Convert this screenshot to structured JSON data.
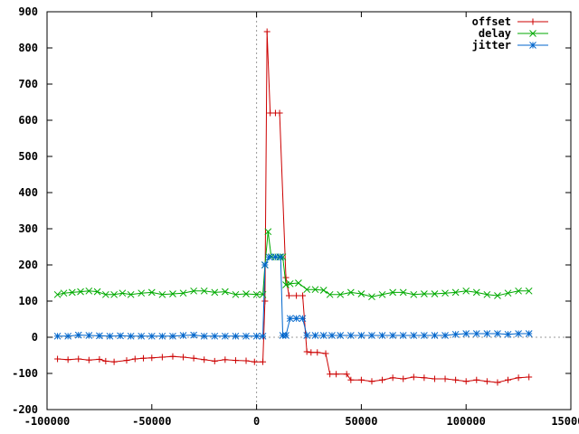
{
  "chart_data": {
    "type": "line",
    "title": "",
    "xlabel": "",
    "ylabel": "",
    "xlim": [
      -100000,
      150000
    ],
    "ylim": [
      -200,
      900
    ],
    "x_ticks": [
      -100000,
      -50000,
      0,
      50000,
      100000,
      150000
    ],
    "x_tick_labels": [
      "-100000",
      "-50000",
      "0",
      "50000",
      "100000",
      "150000"
    ],
    "y_ticks": [
      -200,
      -100,
      0,
      100,
      200,
      300,
      400,
      500,
      600,
      700,
      800,
      900
    ],
    "y_tick_labels": [
      "-200",
      "-100",
      "0",
      "100",
      "200",
      "300",
      "400",
      "500",
      "600",
      "700",
      "800",
      "900"
    ],
    "grid": false,
    "zero_axes": "dotted",
    "legend_position": "top-right",
    "series": [
      {
        "name": "offset",
        "color": "#cc0000",
        "marker": "plus",
        "points": [
          [
            -95000,
            -60
          ],
          [
            -90000,
            -62
          ],
          [
            -85000,
            -60
          ],
          [
            -80000,
            -63
          ],
          [
            -75000,
            -61
          ],
          [
            -72000,
            -66
          ],
          [
            -68000,
            -68
          ],
          [
            -62000,
            -64
          ],
          [
            -58000,
            -60
          ],
          [
            -54000,
            -58
          ],
          [
            -50000,
            -57
          ],
          [
            -45000,
            -55
          ],
          [
            -40000,
            -53
          ],
          [
            -35000,
            -55
          ],
          [
            -30000,
            -58
          ],
          [
            -25000,
            -62
          ],
          [
            -20000,
            -66
          ],
          [
            -15000,
            -62
          ],
          [
            -10000,
            -64
          ],
          [
            -5000,
            -65
          ],
          [
            -1000,
            -68
          ],
          [
            3000,
            -68
          ],
          [
            4000,
            100
          ],
          [
            5000,
            845
          ],
          [
            6500,
            620
          ],
          [
            9000,
            620
          ],
          [
            11000,
            620
          ],
          [
            14000,
            165
          ],
          [
            15500,
            115
          ],
          [
            19000,
            115
          ],
          [
            22000,
            115
          ],
          [
            24000,
            -40
          ],
          [
            26000,
            -42
          ],
          [
            29000,
            -42
          ],
          [
            33000,
            -45
          ],
          [
            35000,
            -102
          ],
          [
            38000,
            -102
          ],
          [
            43000,
            -102
          ],
          [
            45000,
            -118
          ],
          [
            50000,
            -118
          ],
          [
            55000,
            -122
          ],
          [
            60000,
            -118
          ],
          [
            65000,
            -112
          ],
          [
            70000,
            -115
          ],
          [
            75000,
            -110
          ],
          [
            80000,
            -112
          ],
          [
            85000,
            -115
          ],
          [
            90000,
            -115
          ],
          [
            95000,
            -118
          ],
          [
            100000,
            -122
          ],
          [
            105000,
            -118
          ],
          [
            110000,
            -122
          ],
          [
            115000,
            -125
          ],
          [
            120000,
            -118
          ],
          [
            125000,
            -112
          ],
          [
            130000,
            -110
          ]
        ]
      },
      {
        "name": "delay",
        "color": "#00aa00",
        "marker": "cross",
        "points": [
          [
            -95000,
            118
          ],
          [
            -92000,
            122
          ],
          [
            -88000,
            124
          ],
          [
            -84000,
            126
          ],
          [
            -80000,
            128
          ],
          [
            -76000,
            126
          ],
          [
            -72000,
            118
          ],
          [
            -68000,
            118
          ],
          [
            -64000,
            122
          ],
          [
            -60000,
            118
          ],
          [
            -55000,
            122
          ],
          [
            -50000,
            124
          ],
          [
            -45000,
            118
          ],
          [
            -40000,
            120
          ],
          [
            -35000,
            122
          ],
          [
            -30000,
            128
          ],
          [
            -25000,
            128
          ],
          [
            -20000,
            124
          ],
          [
            -15000,
            126
          ],
          [
            -10000,
            118
          ],
          [
            -5000,
            120
          ],
          [
            0,
            118
          ],
          [
            3000,
            118
          ],
          [
            4000,
            200
          ],
          [
            5500,
            292
          ],
          [
            7000,
            222
          ],
          [
            9000,
            222
          ],
          [
            11000,
            222
          ],
          [
            12500,
            222
          ],
          [
            14000,
            145
          ],
          [
            16000,
            148
          ],
          [
            20000,
            150
          ],
          [
            24000,
            132
          ],
          [
            28000,
            132
          ],
          [
            32000,
            130
          ],
          [
            35000,
            118
          ],
          [
            40000,
            118
          ],
          [
            45000,
            124
          ],
          [
            50000,
            120
          ],
          [
            55000,
            112
          ],
          [
            60000,
            118
          ],
          [
            65000,
            124
          ],
          [
            70000,
            124
          ],
          [
            75000,
            118
          ],
          [
            80000,
            120
          ],
          [
            85000,
            120
          ],
          [
            90000,
            122
          ],
          [
            95000,
            124
          ],
          [
            100000,
            128
          ],
          [
            105000,
            124
          ],
          [
            110000,
            118
          ],
          [
            115000,
            115
          ],
          [
            120000,
            122
          ],
          [
            125000,
            128
          ],
          [
            130000,
            128
          ]
        ]
      },
      {
        "name": "jitter",
        "color": "#0066cc",
        "marker": "star",
        "points": [
          [
            -95000,
            3
          ],
          [
            -90000,
            3
          ],
          [
            -85000,
            6
          ],
          [
            -80000,
            5
          ],
          [
            -75000,
            4
          ],
          [
            -70000,
            3
          ],
          [
            -65000,
            4
          ],
          [
            -60000,
            3
          ],
          [
            -55000,
            3
          ],
          [
            -50000,
            3
          ],
          [
            -45000,
            3
          ],
          [
            -40000,
            3
          ],
          [
            -35000,
            5
          ],
          [
            -30000,
            6
          ],
          [
            -25000,
            3
          ],
          [
            -20000,
            3
          ],
          [
            -15000,
            3
          ],
          [
            -10000,
            3
          ],
          [
            -5000,
            3
          ],
          [
            0,
            3
          ],
          [
            3000,
            3
          ],
          [
            4000,
            200
          ],
          [
            6000,
            222
          ],
          [
            9000,
            222
          ],
          [
            11500,
            222
          ],
          [
            12500,
            5
          ],
          [
            14000,
            5
          ],
          [
            16000,
            52
          ],
          [
            19000,
            52
          ],
          [
            22000,
            52
          ],
          [
            24000,
            5
          ],
          [
            28000,
            5
          ],
          [
            32000,
            5
          ],
          [
            36000,
            5
          ],
          [
            40000,
            5
          ],
          [
            45000,
            5
          ],
          [
            50000,
            5
          ],
          [
            55000,
            5
          ],
          [
            60000,
            5
          ],
          [
            65000,
            5
          ],
          [
            70000,
            5
          ],
          [
            75000,
            5
          ],
          [
            80000,
            5
          ],
          [
            85000,
            5
          ],
          [
            90000,
            5
          ],
          [
            95000,
            8
          ],
          [
            100000,
            10
          ],
          [
            105000,
            10
          ],
          [
            110000,
            10
          ],
          [
            115000,
            10
          ],
          [
            120000,
            8
          ],
          [
            125000,
            10
          ],
          [
            130000,
            10
          ]
        ]
      }
    ]
  }
}
